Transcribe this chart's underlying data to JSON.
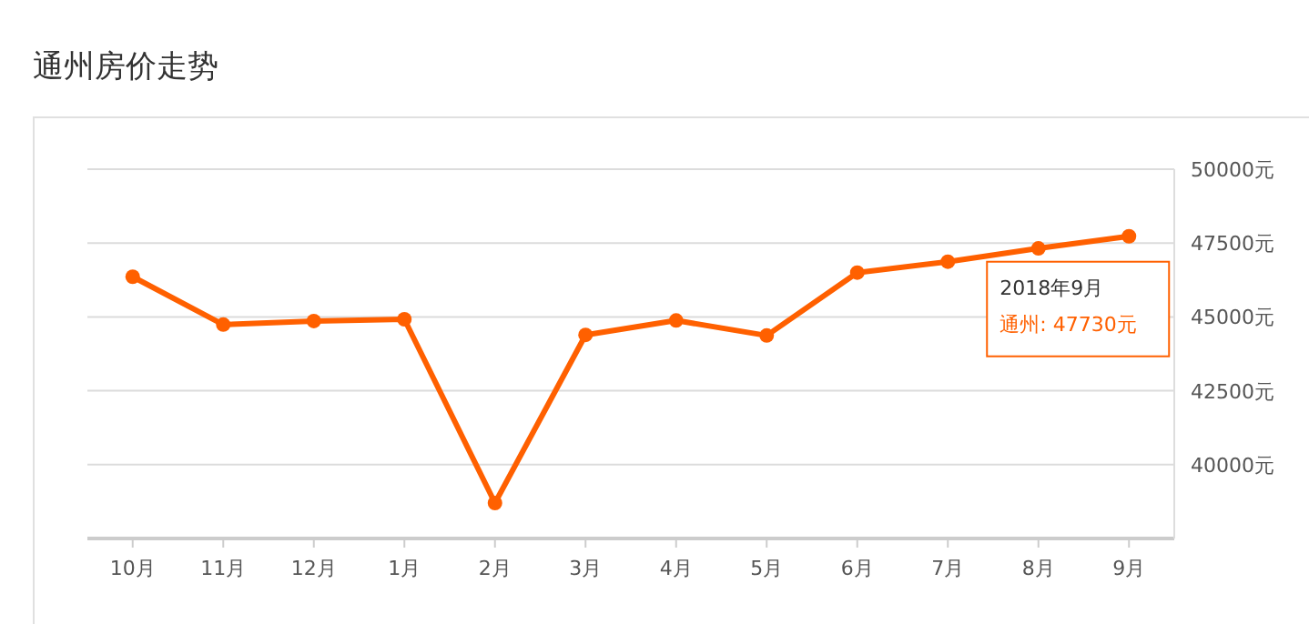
{
  "chart_data": {
    "type": "line",
    "title": "通州房价走势",
    "categories": [
      "10月",
      "11月",
      "12月",
      "1月",
      "2月",
      "3月",
      "4月",
      "5月",
      "6月",
      "7月",
      "8月",
      "9月"
    ],
    "series": [
      {
        "color": "#ff6000",
        "values": [
          46360,
          44740,
          44860,
          44920,
          38700,
          44390,
          44880,
          44370,
          46500,
          46870,
          47320,
          47730
        ]
      }
    ],
    "annotations": [
      "2018年9月",
      "通州:  47730元"
    ],
    "ylim": [
      37500,
      50000
    ],
    "yticks": [
      {
        "value": 40000,
        "label": "40000元"
      },
      {
        "value": 42500,
        "label": "42500元"
      },
      {
        "value": 45000,
        "label": "45000元"
      },
      {
        "value": 47500,
        "label": "47500元"
      },
      {
        "value": 50000,
        "label": "50000元"
      }
    ],
    "grid": "y",
    "marker": "circle",
    "line_style": "solid"
  }
}
